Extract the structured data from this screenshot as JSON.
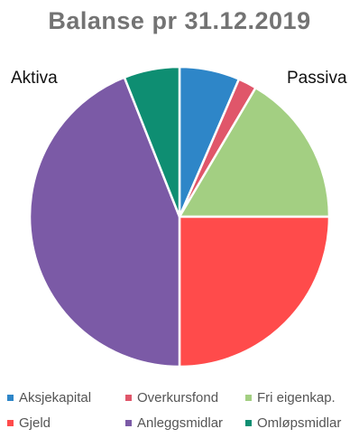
{
  "chart_data": {
    "type": "pie",
    "title": "Balanse pr 31.12.2019",
    "group_labels": [
      "Aktiva",
      "Passiva"
    ],
    "slices": [
      {
        "name": "Aksjekapital",
        "value": 6.5,
        "color": "#2E86C8"
      },
      {
        "name": "Overkursfond",
        "value": 2.0,
        "color": "#E0566A"
      },
      {
        "name": "Fri eigenkap.",
        "value": 16.5,
        "color": "#A3CF82"
      },
      {
        "name": "Gjeld",
        "value": 25.0,
        "color": "#FF4B4B"
      },
      {
        "name": "Anleggsmidlar",
        "value": 44.0,
        "color": "#7B5AA6"
      },
      {
        "name": "Omløpsmidlar",
        "value": 6.0,
        "color": "#0E8E72"
      }
    ],
    "start_angle_deg": 0,
    "direction": "clockwise",
    "legend_position": "bottom"
  }
}
